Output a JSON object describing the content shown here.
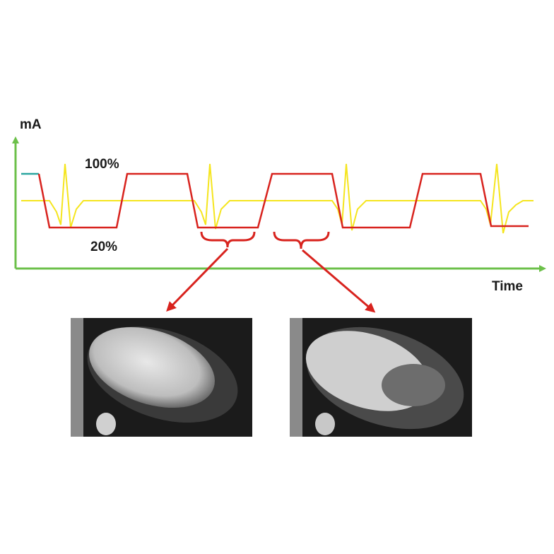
{
  "axes": {
    "y_label": "mA",
    "x_label": "Time"
  },
  "levels": {
    "high": "100%",
    "low": "20%"
  }
}
